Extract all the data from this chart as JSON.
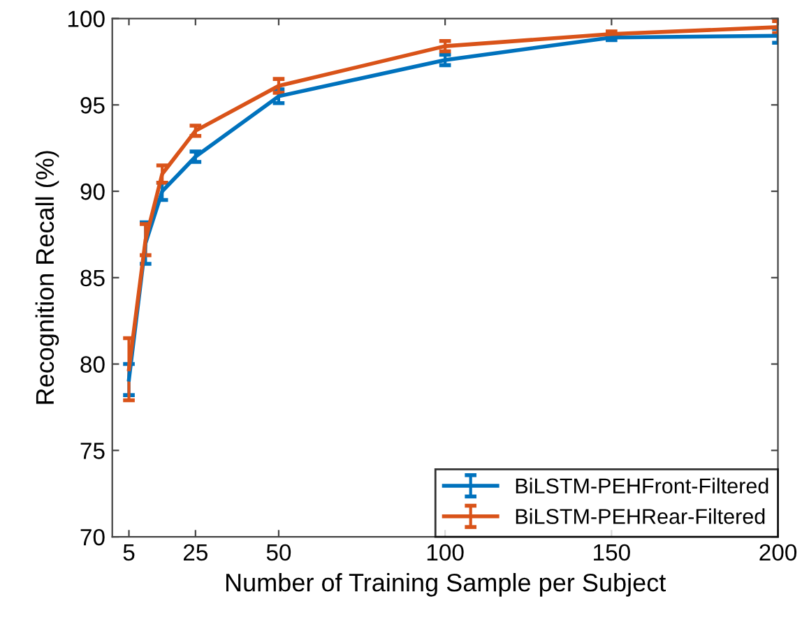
{
  "chart_data": {
    "type": "line",
    "xlabel": "Number of Training Sample per Subject",
    "ylabel": "Recognition Recall (%)",
    "x": [
      5,
      10,
      15,
      25,
      50,
      100,
      150,
      200
    ],
    "series": [
      {
        "name": "BiLSTM-PEHFront-Filtered",
        "color": "#0072bd",
        "values": [
          79.1,
          87.0,
          90.0,
          92.0,
          95.5,
          97.6,
          98.9,
          99.0
        ],
        "errors": [
          0.9,
          1.2,
          0.5,
          0.3,
          0.4,
          0.3,
          0.15,
          0.4
        ]
      },
      {
        "name": "BiLSTM-PEHRear-Filtered",
        "color": "#d95319",
        "values": [
          79.7,
          87.2,
          91.0,
          93.5,
          96.1,
          98.4,
          99.1,
          99.5
        ],
        "errors": [
          1.8,
          0.9,
          0.5,
          0.3,
          0.4,
          0.3,
          0.15,
          0.35
        ]
      }
    ],
    "xlim": [
      0,
      200
    ],
    "xticks": [
      5,
      25,
      50,
      100,
      150,
      200
    ],
    "ylim": [
      70,
      100
    ],
    "yticks": [
      70,
      75,
      80,
      85,
      90,
      95,
      100
    ],
    "grid": false,
    "legend": "bottom right",
    "marker": "none",
    "line_style": "solid"
  }
}
